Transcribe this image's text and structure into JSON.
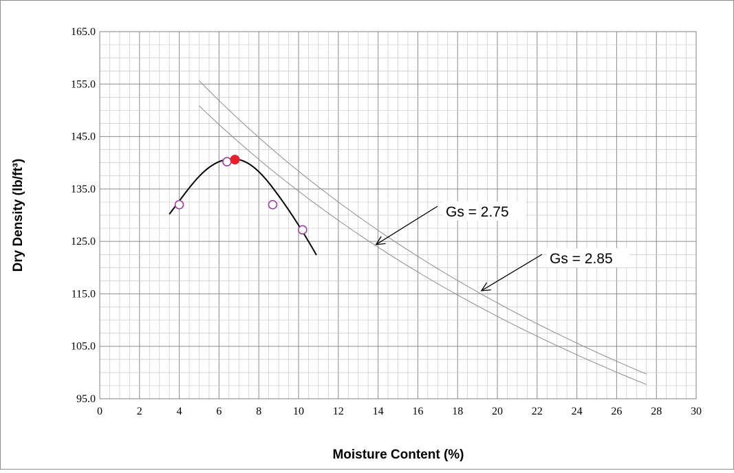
{
  "chart_data": {
    "type": "scatter",
    "title": "",
    "xlabel": "Moisture Content (%)",
    "ylabel": "Dry Density (lb/ft³)",
    "xlim": [
      0,
      30
    ],
    "ylim": [
      95,
      165
    ],
    "x_ticks": [
      0,
      2,
      4,
      6,
      8,
      10,
      12,
      14,
      16,
      18,
      20,
      22,
      24,
      26,
      28,
      30
    ],
    "y_ticks": [
      "95.0",
      "105.0",
      "115.0",
      "125.0",
      "135.0",
      "145.0",
      "155.0",
      "165.0"
    ],
    "grid": true,
    "test_points": [
      {
        "x": 4.0,
        "y": 132.0
      },
      {
        "x": 6.4,
        "y": 140.2
      },
      {
        "x": 8.7,
        "y": 132.0
      },
      {
        "x": 10.2,
        "y": 127.2
      }
    ],
    "optimum_point": {
      "x": 6.8,
      "y": 140.6
    },
    "compaction_curve": {
      "x": [
        3.5,
        4.0,
        4.5,
        5.0,
        5.5,
        6.0,
        6.5,
        7.0,
        7.5,
        8.0,
        8.5,
        9.0,
        9.5,
        10.0,
        10.5,
        10.9
      ],
      "y": [
        130.2,
        132.7,
        135.2,
        137.4,
        139.1,
        140.2,
        140.7,
        140.6,
        139.8,
        138.3,
        136.2,
        133.7,
        131.0,
        128.1,
        125.0,
        122.4
      ]
    },
    "zero_air_voids": [
      {
        "gs": 2.75,
        "color": "#8c8c8c",
        "x_range": [
          5,
          27.5
        ]
      },
      {
        "gs": 2.85,
        "color": "#8c8c8c",
        "x_range": [
          5,
          27.5
        ]
      }
    ],
    "annotations": [
      {
        "text": "Gs = 2.75",
        "arrow_to": {
          "x": 13.9,
          "y": 124.4
        }
      },
      {
        "text": "Gs = 2.85",
        "arrow_to": {
          "x": 19.2,
          "y": 115.6
        }
      }
    ],
    "colors": {
      "curve": "#000000",
      "test_point_edge": "#a03ca0",
      "optimum_fill": "#e8202a",
      "grid_major": "#8a8a8a",
      "grid_minor": "#c8c8c8"
    }
  }
}
